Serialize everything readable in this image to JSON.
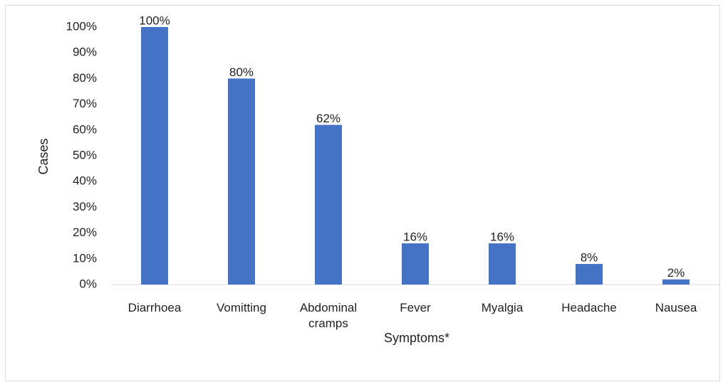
{
  "chart_data": {
    "type": "bar",
    "x_label": "Symptoms*",
    "y_label": "Cases",
    "categories": [
      "Diarrhoea",
      "Vomitting",
      "Abdominal cramps",
      "Fever",
      "Myalgia",
      "Headache",
      "Nausea"
    ],
    "values": [
      100,
      80,
      62,
      16,
      16,
      8,
      2
    ],
    "value_labels": [
      "100%",
      "80%",
      "62%",
      "16%",
      "16%",
      "8%",
      "2%"
    ],
    "color": "#4472c4",
    "ylim": [
      0,
      100
    ],
    "yticks": [
      {
        "value": 0,
        "label": "0%"
      },
      {
        "value": 10,
        "label": "10%"
      },
      {
        "value": 20,
        "label": "20%"
      },
      {
        "value": 30,
        "label": "30%"
      },
      {
        "value": 40,
        "label": "40%"
      },
      {
        "value": 50,
        "label": "50%"
      },
      {
        "value": 60,
        "label": "60%"
      },
      {
        "value": 70,
        "label": "70%"
      },
      {
        "value": 80,
        "label": "80%"
      },
      {
        "value": 90,
        "label": "90%"
      },
      {
        "value": 100,
        "label": "100%"
      }
    ],
    "grid": false
  }
}
